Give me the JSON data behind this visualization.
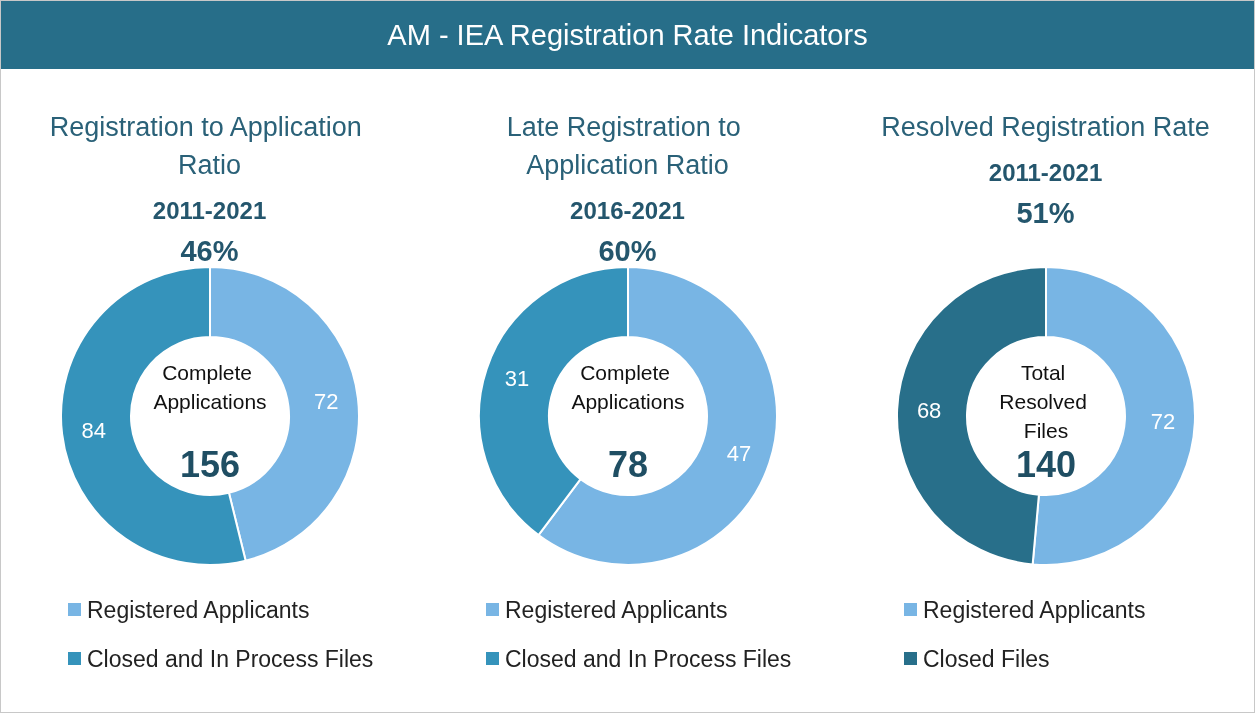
{
  "chart_data": [
    {
      "type": "other",
      "title": "AM - IEA Registration Rate Indicators"
    },
    {
      "type": "donut",
      "title": "Registration to Application Ratio",
      "subtitle": "2011-2021",
      "annotations": [
        "46%",
        "Complete Applications",
        "156"
      ],
      "categories": [
        "Registered Applicants",
        "Closed and In Process Files"
      ],
      "values": [
        72,
        84
      ],
      "colors": [
        "#78b5e4",
        "#3593bb"
      ],
      "data_labels": true,
      "legend": "bottom"
    },
    {
      "type": "donut",
      "title": "Late Registration to Application Ratio",
      "subtitle": "2016-2021",
      "annotations": [
        "60%",
        "Complete Applications",
        "78"
      ],
      "categories": [
        "Registered Applicants",
        "Closed and In Process Files"
      ],
      "values": [
        47,
        31
      ],
      "colors": [
        "#78b5e4",
        "#3593bb"
      ],
      "data_labels": true,
      "legend": "bottom"
    },
    {
      "type": "donut",
      "title": "Resolved Registration Rate",
      "subtitle": "2011-2021",
      "annotations": [
        "51%",
        "Total Resolved Files",
        "140"
      ],
      "categories": [
        "Registered Applicants",
        "Closed Files"
      ],
      "values": [
        72,
        68
      ],
      "colors": [
        "#78b5e4",
        "#286f8a"
      ],
      "data_labels": true,
      "legend": "bottom"
    }
  ]
}
